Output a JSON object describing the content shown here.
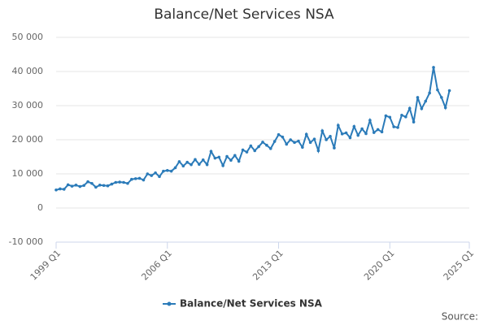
{
  "chart_data": {
    "type": "line",
    "title": "Balance/Net Services NSA",
    "categories": [
      "1999 Q1",
      null,
      null,
      null,
      null,
      null,
      null,
      null,
      null,
      null,
      null,
      null,
      null,
      null,
      null,
      null,
      null,
      null,
      null,
      null,
      null,
      null,
      null,
      null,
      null,
      null,
      null,
      null,
      "2006 Q1",
      null,
      null,
      null,
      null,
      null,
      null,
      null,
      null,
      null,
      null,
      null,
      null,
      null,
      null,
      null,
      null,
      null,
      null,
      null,
      null,
      null,
      null,
      null,
      null,
      null,
      null,
      null,
      "2013 Q1",
      null,
      null,
      null,
      null,
      null,
      null,
      null,
      null,
      null,
      null,
      null,
      null,
      null,
      null,
      null,
      null,
      null,
      null,
      null,
      null,
      null,
      null,
      null,
      null,
      null,
      null,
      null,
      "2020 Q1",
      null,
      null,
      null,
      null,
      null,
      null,
      null,
      null,
      null,
      null,
      null,
      null,
      null,
      null,
      null,
      null,
      null,
      null,
      null,
      "2025 Q1"
    ],
    "series": [
      {
        "name": "Balance/Net Services NSA",
        "color": "#2b7bb9",
        "values": [
          5300,
          5600,
          5500,
          6800,
          6400,
          6700,
          6300,
          6600,
          7700,
          7200,
          6100,
          6700,
          6600,
          6500,
          7000,
          7500,
          7600,
          7500,
          7200,
          8400,
          8600,
          8700,
          8200,
          10000,
          9500,
          10300,
          9200,
          10800,
          11000,
          10800,
          11800,
          13600,
          12300,
          13400,
          12700,
          14200,
          12800,
          14100,
          12700,
          16600,
          14600,
          14900,
          12400,
          15100,
          14000,
          15400,
          13700,
          17000,
          16400,
          18200,
          16800,
          18000,
          19300,
          18400,
          17400,
          19500,
          21500,
          20800,
          18700,
          20000,
          19200,
          19600,
          17800,
          21600,
          19200,
          20200,
          16800,
          22600,
          20000,
          21000,
          17600,
          24200,
          21700,
          22000,
          20600,
          23900,
          21300,
          23200,
          21800,
          25700,
          22100,
          23000,
          22300,
          27000,
          26600,
          23800,
          23600,
          27200,
          26700,
          29200,
          25200,
          32400,
          29100,
          31300,
          33700,
          41200,
          34600,
          32400,
          29400,
          34400,
          null,
          null,
          null,
          null,
          null
        ]
      }
    ],
    "ylim": [
      -10000,
      50000
    ],
    "yticks": [
      {
        "value": -10000,
        "label": "-10 000"
      },
      0,
      {
        "value": 10000,
        "label": "10 000"
      },
      {
        "value": 20000,
        "label": "20 000"
      },
      {
        "value": 30000,
        "label": "30 000"
      },
      {
        "value": 40000,
        "label": "40 000"
      },
      {
        "value": 50000,
        "label": "50 000"
      }
    ],
    "grid": true,
    "legend": "bottom",
    "source": "Source:"
  }
}
